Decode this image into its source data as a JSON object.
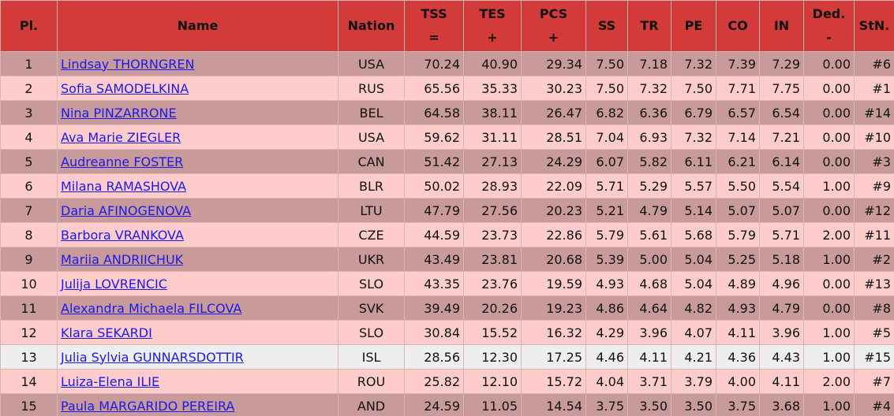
{
  "table": {
    "columns": [
      {
        "label": "Pl."
      },
      {
        "label": "Name"
      },
      {
        "label": "Nation"
      },
      {
        "label": "TSS",
        "sub": "="
      },
      {
        "label": "TES",
        "sub": "+"
      },
      {
        "label": "PCS",
        "sub": "+"
      },
      {
        "label": "SS"
      },
      {
        "label": "TR"
      },
      {
        "label": "PE"
      },
      {
        "label": "CO"
      },
      {
        "label": "IN"
      },
      {
        "label": "Ded.",
        "sub": "-"
      },
      {
        "label": "StN."
      }
    ],
    "rows": [
      [
        "1",
        "Lindsay THORNGREN",
        "USA",
        "70.24",
        "40.90",
        "29.34",
        "7.50",
        "7.18",
        "7.32",
        "7.39",
        "7.29",
        "0.00",
        "#6"
      ],
      [
        "2",
        "Sofia SAMODELKINA",
        "RUS",
        "65.56",
        "35.33",
        "30.23",
        "7.50",
        "7.32",
        "7.50",
        "7.71",
        "7.75",
        "0.00",
        "#1"
      ],
      [
        "3",
        "Nina PINZARRONE",
        "BEL",
        "64.58",
        "38.11",
        "26.47",
        "6.82",
        "6.36",
        "6.79",
        "6.57",
        "6.54",
        "0.00",
        "#14"
      ],
      [
        "4",
        "Ava Marie ZIEGLER",
        "USA",
        "59.62",
        "31.11",
        "28.51",
        "7.04",
        "6.93",
        "7.32",
        "7.14",
        "7.21",
        "0.00",
        "#10"
      ],
      [
        "5",
        "Audreanne FOSTER",
        "CAN",
        "51.42",
        "27.13",
        "24.29",
        "6.07",
        "5.82",
        "6.11",
        "6.21",
        "6.14",
        "0.00",
        "#3"
      ],
      [
        "6",
        "Milana RAMASHOVA",
        "BLR",
        "50.02",
        "28.93",
        "22.09",
        "5.71",
        "5.29",
        "5.57",
        "5.50",
        "5.54",
        "1.00",
        "#9"
      ],
      [
        "7",
        "Daria AFINOGENOVA",
        "LTU",
        "47.79",
        "27.56",
        "20.23",
        "5.21",
        "4.79",
        "5.14",
        "5.07",
        "5.07",
        "0.00",
        "#12"
      ],
      [
        "8",
        "Barbora VRANKOVA",
        "CZE",
        "44.59",
        "23.73",
        "22.86",
        "5.79",
        "5.61",
        "5.68",
        "5.79",
        "5.71",
        "2.00",
        "#11"
      ],
      [
        "9",
        "Mariia ANDRIICHUK",
        "UKR",
        "43.49",
        "23.81",
        "20.68",
        "5.39",
        "5.00",
        "5.04",
        "5.25",
        "5.18",
        "1.00",
        "#2"
      ],
      [
        "10",
        "Julija LOVRENCIC",
        "SLO",
        "43.35",
        "23.76",
        "19.59",
        "4.93",
        "4.68",
        "5.04",
        "4.89",
        "4.96",
        "0.00",
        "#13"
      ],
      [
        "11",
        "Alexandra Michaela FILCOVA",
        "SVK",
        "39.49",
        "20.26",
        "19.23",
        "4.86",
        "4.64",
        "4.82",
        "4.93",
        "4.79",
        "0.00",
        "#8"
      ],
      [
        "12",
        "Klara SEKARDI",
        "SLO",
        "30.84",
        "15.52",
        "16.32",
        "4.29",
        "3.96",
        "4.07",
        "4.11",
        "3.96",
        "1.00",
        "#5"
      ],
      [
        "13",
        "Julia Sylvia GUNNARSDOTTIR",
        "ISL",
        "28.56",
        "12.30",
        "17.25",
        "4.46",
        "4.11",
        "4.21",
        "4.36",
        "4.43",
        "1.00",
        "#15"
      ],
      [
        "14",
        "Luiza-Elena ILIE",
        "ROU",
        "25.82",
        "12.10",
        "15.72",
        "4.04",
        "3.71",
        "3.79",
        "4.00",
        "4.11",
        "2.00",
        "#7"
      ],
      [
        "15",
        "Paula MARGARIDO PEREIRA",
        "AND",
        "24.59",
        "11.05",
        "14.54",
        "3.75",
        "3.50",
        "3.50",
        "3.75",
        "3.68",
        "1.00",
        "#4"
      ]
    ]
  }
}
